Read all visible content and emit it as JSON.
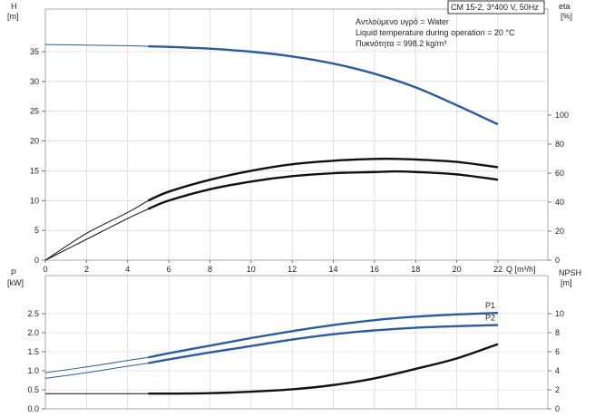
{
  "chart_data": [
    {
      "type": "line",
      "panel": "top",
      "header": "CM 15-2, 3*400 V, 50Hz",
      "notes": [
        "Αντλούμενο υγρό = Water",
        "Liquid temperature during operation = 20 °C",
        "Πυκνότητα = 998.2 kg/m³"
      ],
      "xlabel": "Q [m³/h]",
      "xticks": [
        "0",
        "2",
        "4",
        "6",
        "8",
        "10",
        "12",
        "14",
        "16",
        "18",
        "20",
        "22"
      ],
      "xlim": [
        0,
        22
      ],
      "ylabel_left": "H",
      "ylabel_left_unit": "[m]",
      "yticks_left": [
        "0",
        "5",
        "10",
        "15",
        "20",
        "25",
        "30",
        "35"
      ],
      "ylim_left": [
        0,
        36
      ],
      "ylabel_right": "eta",
      "ylabel_right_unit": "[%]",
      "yticks_right": [
        "0",
        "20",
        "40",
        "60",
        "80",
        "100"
      ],
      "ylim_right": [
        0,
        144
      ],
      "series": [
        {
          "axis": "left",
          "color": "#2a5aa0",
          "x": [
            0,
            2,
            4,
            5,
            6,
            8,
            10,
            12,
            14,
            16,
            18,
            20,
            22
          ],
          "y": [
            36.2,
            36.1,
            36.0,
            35.9,
            35.8,
            35.5,
            35.0,
            34.2,
            33.0,
            31.3,
            29.0,
            26.0,
            22.8
          ]
        },
        {
          "axis": "left",
          "color": "#111111",
          "x": [
            0,
            2,
            4,
            5,
            6,
            8,
            10,
            12,
            14,
            16,
            17,
            18,
            20,
            22
          ],
          "y": [
            0,
            4.5,
            8.0,
            10.0,
            11.5,
            13.5,
            15.0,
            16.1,
            16.7,
            17.0,
            17.0,
            16.9,
            16.5,
            15.6
          ]
        },
        {
          "axis": "left",
          "color": "#111111",
          "x": [
            0,
            2,
            4,
            5,
            6,
            8,
            10,
            12,
            14,
            16,
            17,
            18,
            20,
            22
          ],
          "y": [
            0,
            3.5,
            7.0,
            8.6,
            10.0,
            11.9,
            13.2,
            14.1,
            14.6,
            14.8,
            14.9,
            14.8,
            14.4,
            13.5
          ]
        }
      ]
    },
    {
      "type": "line",
      "panel": "bottom",
      "xlim": [
        0,
        22
      ],
      "ylabel_left": "P",
      "ylabel_left_unit": "[kW]",
      "yticks_left": [
        "0.0",
        "0.5",
        "1.0",
        "1.5",
        "2.0",
        "2.5"
      ],
      "ylim_left": [
        0,
        2.75
      ],
      "ylabel_right": "NPSH",
      "ylabel_right_unit": "[m]",
      "yticks_right": [
        "0",
        "2",
        "4",
        "6",
        "8",
        "10"
      ],
      "ylim_right": [
        0,
        11
      ],
      "series": [
        {
          "name": "P1",
          "axis": "left",
          "color": "#2a5aa0",
          "x": [
            0,
            2,
            4,
            5,
            6,
            8,
            10,
            12,
            14,
            16,
            18,
            20,
            22
          ],
          "y": [
            0.95,
            1.1,
            1.27,
            1.35,
            1.46,
            1.66,
            1.86,
            2.04,
            2.2,
            2.33,
            2.42,
            2.48,
            2.52
          ]
        },
        {
          "name": "P2",
          "axis": "left",
          "color": "#2a5aa0",
          "x": [
            0,
            2,
            4,
            5,
            6,
            8,
            10,
            12,
            14,
            16,
            18,
            20,
            22
          ],
          "y": [
            0.8,
            0.95,
            1.12,
            1.2,
            1.3,
            1.48,
            1.65,
            1.82,
            1.96,
            2.06,
            2.13,
            2.17,
            2.2
          ]
        },
        {
          "axis": "right",
          "color": "#111111",
          "x": [
            0,
            2,
            4,
            5,
            6,
            8,
            10,
            12,
            14,
            16,
            18,
            20,
            22
          ],
          "y": [
            1.6,
            1.6,
            1.6,
            1.6,
            1.6,
            1.65,
            1.8,
            2.05,
            2.5,
            3.2,
            4.2,
            5.3,
            6.8
          ]
        }
      ]
    }
  ]
}
